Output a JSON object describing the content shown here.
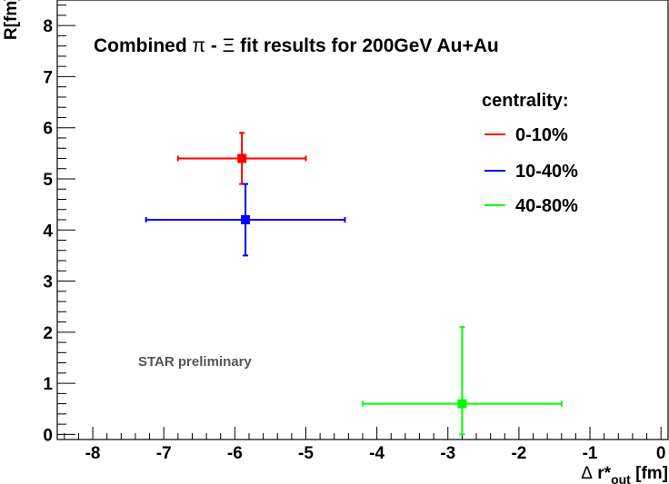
{
  "chart_data": {
    "type": "scatter",
    "title_parts": [
      "Combined ",
      "π",
      " - ",
      "Ξ",
      " fit results for 200GeV Au+Au"
    ],
    "xlabel_parts": [
      "Δ",
      " r*",
      "out",
      " [fm]"
    ],
    "ylabel": "R[fm]",
    "xlim": [
      -8.5,
      0.1
    ],
    "ylim": [
      -0.1,
      8.5
    ],
    "xticks": [
      -8,
      -7,
      -6,
      -5,
      -4,
      -3,
      -2,
      -1,
      0
    ],
    "xtick_labels": [
      "-8",
      "-7",
      "-6",
      "-5",
      "-4",
      "-3",
      "-2",
      "-1",
      "0"
    ],
    "yticks": [
      0,
      1,
      2,
      3,
      4,
      5,
      6,
      7,
      8
    ],
    "ytick_labels": [
      "0",
      "1",
      "2",
      "3",
      "4",
      "5",
      "6",
      "7",
      "8"
    ],
    "legend_title": "centrality:",
    "legend_placement": "top-right",
    "annotation": "STAR preliminary",
    "grid": false,
    "series": [
      {
        "name": "0-10%",
        "color": "#ff0000",
        "x": -5.9,
        "y": 5.4,
        "xerr_low": 0.9,
        "xerr_high": 0.9,
        "yerr_low": 0.5,
        "yerr_high": 0.5
      },
      {
        "name": "10-40%",
        "color": "#0000ff",
        "x": -5.85,
        "y": 4.2,
        "xerr_low": 1.4,
        "xerr_high": 1.4,
        "yerr_low": 0.7,
        "yerr_high": 0.7
      },
      {
        "name": "40-80%",
        "color": "#00ff00",
        "x": -2.8,
        "y": 0.6,
        "xerr_low": 1.4,
        "xerr_high": 1.4,
        "yerr_low": 0.6,
        "yerr_high": 1.5
      }
    ]
  }
}
